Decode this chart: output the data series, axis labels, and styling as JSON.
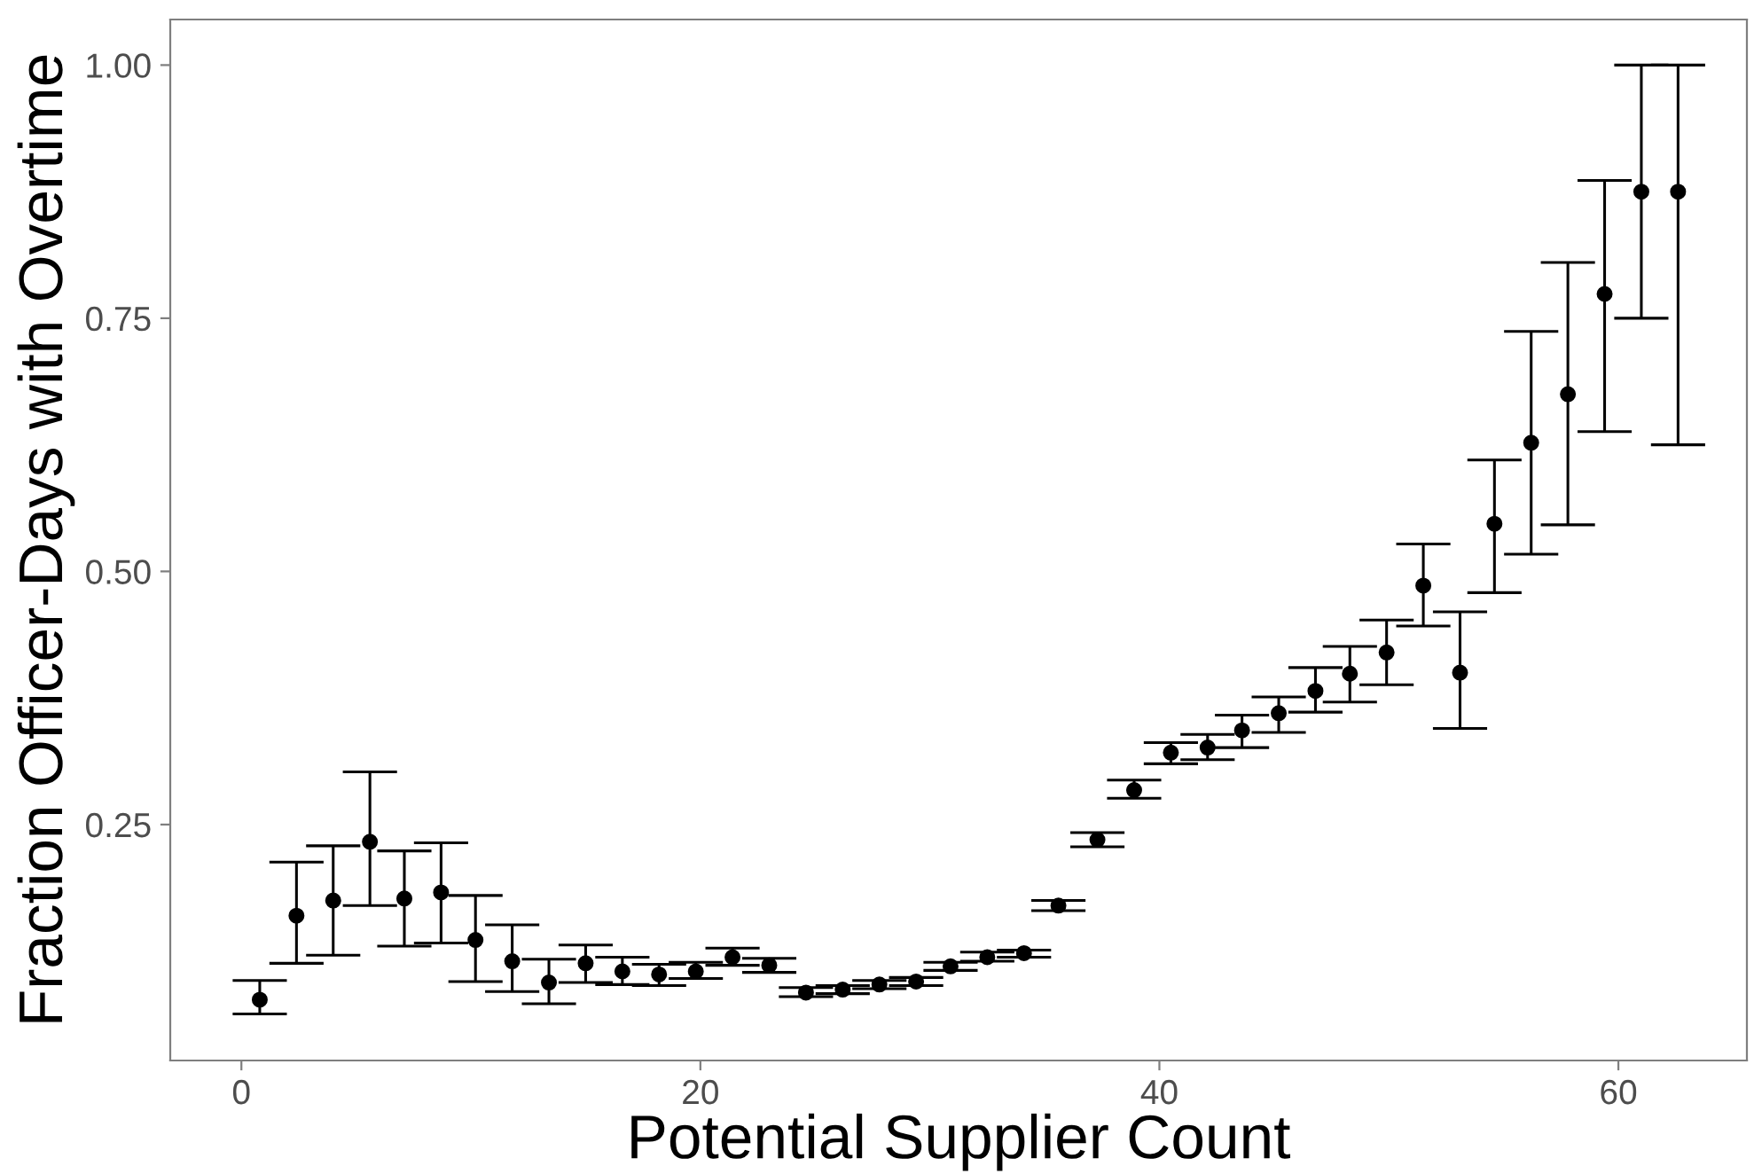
{
  "chart_data": {
    "type": "scatter",
    "xlabel": "Potential Supplier Count",
    "ylabel": "Fraction Officer-Days with Overtime",
    "x": [
      0.8,
      2.4,
      4.0,
      5.6,
      7.1,
      8.7,
      10.2,
      11.8,
      13.4,
      15.0,
      16.6,
      18.2,
      19.8,
      21.4,
      23.0,
      24.6,
      26.2,
      27.8,
      29.4,
      30.9,
      32.5,
      34.1,
      35.6,
      37.3,
      38.9,
      40.5,
      42.1,
      43.6,
      45.2,
      46.8,
      48.3,
      49.9,
      51.5,
      53.1,
      54.6,
      56.2,
      57.8,
      59.4,
      61.0,
      62.6
    ],
    "series": [
      {
        "color": "#000000",
        "values": [
          0.077,
          0.16,
          0.175,
          0.233,
          0.177,
          0.183,
          0.136,
          0.115,
          0.094,
          0.113,
          0.105,
          0.102,
          0.105,
          0.119,
          0.111,
          0.084,
          0.087,
          0.092,
          0.095,
          0.11,
          0.119,
          0.123,
          0.17,
          0.235,
          0.284,
          0.321,
          0.326,
          0.343,
          0.36,
          0.382,
          0.399,
          0.42,
          0.486,
          0.4,
          0.547,
          0.627,
          0.675,
          0.774,
          0.875,
          0.875
        ],
        "errors": [
          [
            0.063,
            0.096
          ],
          [
            0.113,
            0.213
          ],
          [
            0.121,
            0.229
          ],
          [
            0.17,
            0.302
          ],
          [
            0.13,
            0.224
          ],
          [
            0.133,
            0.232
          ],
          [
            0.095,
            0.18
          ],
          [
            0.085,
            0.151
          ],
          [
            0.073,
            0.117
          ],
          [
            0.094,
            0.131
          ],
          [
            0.092,
            0.119
          ],
          [
            0.091,
            0.112
          ],
          [
            0.098,
            0.114
          ],
          [
            0.111,
            0.128
          ],
          [
            0.104,
            0.118
          ],
          [
            0.08,
            0.089
          ],
          [
            0.083,
            0.091
          ],
          [
            0.088,
            0.096
          ],
          [
            0.091,
            0.099
          ],
          [
            0.106,
            0.114
          ],
          [
            0.115,
            0.124
          ],
          [
            0.119,
            0.126
          ],
          [
            0.165,
            0.175
          ],
          [
            0.228,
            0.242
          ],
          [
            0.276,
            0.294
          ],
          [
            0.31,
            0.331
          ],
          [
            0.314,
            0.339
          ],
          [
            0.326,
            0.358
          ],
          [
            0.341,
            0.376
          ],
          [
            0.361,
            0.405
          ],
          [
            0.371,
            0.426
          ],
          [
            0.388,
            0.452
          ],
          [
            0.446,
            0.527
          ],
          [
            0.345,
            0.46
          ],
          [
            0.479,
            0.61
          ],
          [
            0.517,
            0.737
          ],
          [
            0.546,
            0.805
          ],
          [
            0.638,
            0.886
          ],
          [
            0.75,
            1.0
          ],
          [
            0.625,
            1.0
          ]
        ]
      }
    ],
    "xlim": [
      -3.1,
      65.6
    ],
    "ylim": [
      0.017,
      1.045
    ],
    "xticks": [
      0,
      20,
      40,
      60
    ],
    "yticks": [
      {
        "value": 0.25,
        "label": "0.25"
      },
      {
        "value": 0.5,
        "label": "0.50"
      },
      {
        "value": 0.75,
        "label": "0.75"
      },
      {
        "value": 1.0,
        "label": "1.00"
      }
    ],
    "marker": "circle",
    "grid": false,
    "legend": false
  }
}
